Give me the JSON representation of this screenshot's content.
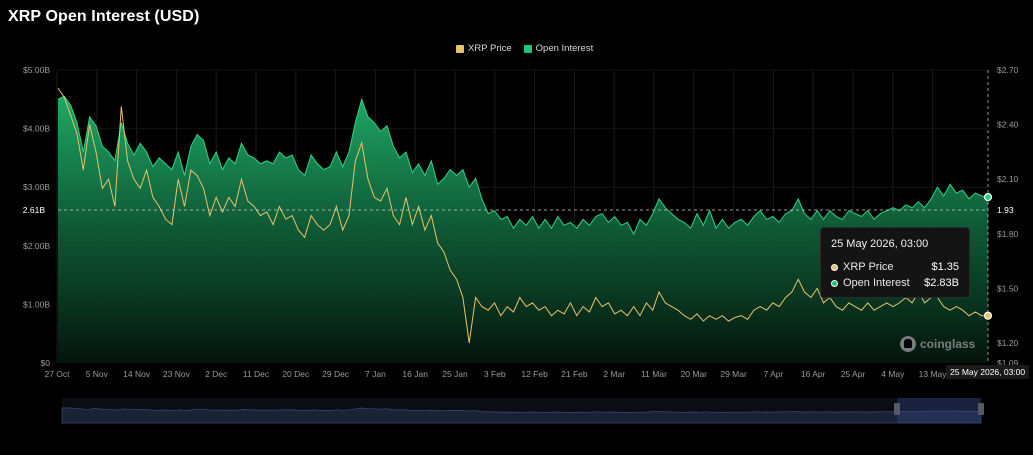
{
  "title": "XRP Open Interest (USD)",
  "legend": [
    {
      "label": "XRP Price",
      "color": "#e8c26a"
    },
    {
      "label": "Open Interest",
      "color": "#1fc37a"
    }
  ],
  "tooltip": {
    "date": "25 May 2026, 03:00",
    "rows": [
      {
        "label": "XRP Price",
        "value": "$1.35",
        "color": "#e8c26a"
      },
      {
        "label": "Open Interest",
        "value": "$2.83B",
        "color": "#1fc37a"
      }
    ]
  },
  "crosshair": {
    "left_label": "2.61B",
    "right_label": "1.93"
  },
  "latest_date_label": "25 May 2026, 03:00",
  "watermark": "coinglass",
  "chart_data": {
    "type": "area",
    "title": "XRP Open Interest (USD)",
    "x_tick_labels": [
      "27 Oct",
      "5 Nov",
      "14 Nov",
      "23 Nov",
      "2 Dec",
      "11 Dec",
      "20 Dec",
      "29 Dec",
      "7 Jan",
      "16 Jan",
      "25 Jan",
      "3 Feb",
      "12 Feb",
      "21 Feb",
      "2 Mar",
      "11 Mar",
      "20 Mar",
      "29 Mar",
      "7 Apr",
      "16 Apr",
      "25 Apr",
      "4 May",
      "13 May"
    ],
    "y_left": {
      "ticks": [
        "$0",
        "$1.00B",
        "$2.00B",
        "$3.00B",
        "$4.00B",
        "$5.00B"
      ],
      "range": [
        0,
        5.0
      ]
    },
    "y_right": {
      "ticks": [
        "$1.09",
        "$1.20",
        "$1.50",
        "$1.80",
        "$2.10",
        "$2.40",
        "$2.70"
      ],
      "range": [
        1.09,
        2.7
      ]
    },
    "legend_position": "top-center",
    "series": [
      {
        "name": "Open Interest",
        "axis": "left",
        "color": "#1fc37a",
        "points": [
          [
            0,
            4.5
          ],
          [
            1,
            4.55
          ],
          [
            2,
            4.4
          ],
          [
            3,
            4.1
          ],
          [
            4,
            3.6
          ],
          [
            5,
            4.2
          ],
          [
            6,
            4.05
          ],
          [
            7,
            3.7
          ],
          [
            8,
            3.6
          ],
          [
            9,
            3.45
          ],
          [
            10,
            4.1
          ],
          [
            11,
            3.75
          ],
          [
            12,
            3.55
          ],
          [
            13,
            3.75
          ],
          [
            14,
            3.6
          ],
          [
            15,
            3.35
          ],
          [
            16,
            3.5
          ],
          [
            17,
            3.4
          ],
          [
            18,
            3.3
          ],
          [
            19,
            3.6
          ],
          [
            20,
            3.2
          ],
          [
            21,
            3.7
          ],
          [
            22,
            3.9
          ],
          [
            23,
            3.8
          ],
          [
            24,
            3.4
          ],
          [
            25,
            3.6
          ],
          [
            26,
            3.3
          ],
          [
            27,
            3.5
          ],
          [
            28,
            3.4
          ],
          [
            29,
            3.75
          ],
          [
            30,
            3.55
          ],
          [
            31,
            3.5
          ],
          [
            32,
            3.4
          ],
          [
            33,
            3.45
          ],
          [
            34,
            3.4
          ],
          [
            35,
            3.6
          ],
          [
            36,
            3.5
          ],
          [
            37,
            3.55
          ],
          [
            38,
            3.3
          ],
          [
            39,
            3.2
          ],
          [
            40,
            3.55
          ],
          [
            41,
            3.4
          ],
          [
            42,
            3.3
          ],
          [
            43,
            3.35
          ],
          [
            44,
            3.6
          ],
          [
            45,
            3.35
          ],
          [
            46,
            3.6
          ],
          [
            47,
            4.1
          ],
          [
            48,
            4.5
          ],
          [
            49,
            4.2
          ],
          [
            50,
            4.1
          ],
          [
            51,
            3.95
          ],
          [
            52,
            4.05
          ],
          [
            53,
            3.7
          ],
          [
            54,
            3.5
          ],
          [
            55,
            3.6
          ],
          [
            56,
            3.25
          ],
          [
            57,
            3.4
          ],
          [
            58,
            3.2
          ],
          [
            59,
            3.45
          ],
          [
            60,
            3.05
          ],
          [
            61,
            3.15
          ],
          [
            62,
            3.3
          ],
          [
            63,
            3.2
          ],
          [
            64,
            3.3
          ],
          [
            65,
            3.0
          ],
          [
            66,
            3.15
          ],
          [
            67,
            2.8
          ],
          [
            68,
            2.55
          ],
          [
            69,
            2.6
          ],
          [
            70,
            2.45
          ],
          [
            71,
            2.5
          ],
          [
            72,
            2.3
          ],
          [
            73,
            2.45
          ],
          [
            74,
            2.35
          ],
          [
            75,
            2.5
          ],
          [
            76,
            2.3
          ],
          [
            77,
            2.45
          ],
          [
            78,
            2.3
          ],
          [
            79,
            2.5
          ],
          [
            80,
            2.35
          ],
          [
            81,
            2.4
          ],
          [
            82,
            2.3
          ],
          [
            83,
            2.45
          ],
          [
            84,
            2.35
          ],
          [
            85,
            2.5
          ],
          [
            86,
            2.55
          ],
          [
            87,
            2.4
          ],
          [
            88,
            2.5
          ],
          [
            89,
            2.35
          ],
          [
            90,
            2.4
          ],
          [
            91,
            2.2
          ],
          [
            92,
            2.45
          ],
          [
            93,
            2.35
          ],
          [
            94,
            2.55
          ],
          [
            95,
            2.8
          ],
          [
            96,
            2.65
          ],
          [
            97,
            2.55
          ],
          [
            98,
            2.45
          ],
          [
            99,
            2.4
          ],
          [
            100,
            2.3
          ],
          [
            101,
            2.55
          ],
          [
            102,
            2.35
          ],
          [
            103,
            2.6
          ],
          [
            104,
            2.3
          ],
          [
            105,
            2.45
          ],
          [
            106,
            2.3
          ],
          [
            107,
            2.4
          ],
          [
            108,
            2.45
          ],
          [
            109,
            2.35
          ],
          [
            110,
            2.5
          ],
          [
            111,
            2.6
          ],
          [
            112,
            2.45
          ],
          [
            113,
            2.5
          ],
          [
            114,
            2.4
          ],
          [
            115,
            2.55
          ],
          [
            116,
            2.6
          ],
          [
            117,
            2.8
          ],
          [
            118,
            2.55
          ],
          [
            119,
            2.45
          ],
          [
            120,
            2.6
          ],
          [
            121,
            2.45
          ],
          [
            122,
            2.6
          ],
          [
            123,
            2.5
          ],
          [
            124,
            2.45
          ],
          [
            125,
            2.6
          ],
          [
            126,
            2.55
          ],
          [
            127,
            2.5
          ],
          [
            128,
            2.6
          ],
          [
            129,
            2.45
          ],
          [
            130,
            2.55
          ],
          [
            131,
            2.6
          ],
          [
            132,
            2.65
          ],
          [
            133,
            2.6
          ],
          [
            134,
            2.7
          ],
          [
            135,
            2.65
          ],
          [
            136,
            2.75
          ],
          [
            137,
            2.65
          ],
          [
            138,
            2.8
          ],
          [
            139,
            3.0
          ],
          [
            140,
            2.85
          ],
          [
            141,
            3.05
          ],
          [
            142,
            2.9
          ],
          [
            143,
            2.95
          ],
          [
            144,
            2.8
          ],
          [
            145,
            2.9
          ],
          [
            146,
            2.85
          ],
          [
            147,
            2.83
          ]
        ]
      },
      {
        "name": "XRP Price",
        "axis": "right",
        "color": "#e8c26a",
        "points": [
          [
            0,
            2.6
          ],
          [
            1,
            2.55
          ],
          [
            2,
            2.45
          ],
          [
            3,
            2.35
          ],
          [
            4,
            2.15
          ],
          [
            5,
            2.4
          ],
          [
            6,
            2.25
          ],
          [
            7,
            2.05
          ],
          [
            8,
            2.1
          ],
          [
            9,
            1.95
          ],
          [
            10,
            2.5
          ],
          [
            11,
            2.2
          ],
          [
            12,
            2.1
          ],
          [
            13,
            2.05
          ],
          [
            14,
            2.15
          ],
          [
            15,
            2.0
          ],
          [
            16,
            1.95
          ],
          [
            17,
            1.88
          ],
          [
            18,
            1.85
          ],
          [
            19,
            2.1
          ],
          [
            20,
            1.95
          ],
          [
            21,
            2.15
          ],
          [
            22,
            2.12
          ],
          [
            23,
            2.05
          ],
          [
            24,
            1.9
          ],
          [
            25,
            2.0
          ],
          [
            26,
            1.92
          ],
          [
            27,
            2.0
          ],
          [
            28,
            1.95
          ],
          [
            29,
            2.1
          ],
          [
            30,
            1.98
          ],
          [
            31,
            1.95
          ],
          [
            32,
            1.9
          ],
          [
            33,
            1.92
          ],
          [
            34,
            1.85
          ],
          [
            35,
            1.95
          ],
          [
            36,
            1.88
          ],
          [
            37,
            1.9
          ],
          [
            38,
            1.82
          ],
          [
            39,
            1.78
          ],
          [
            40,
            1.9
          ],
          [
            41,
            1.85
          ],
          [
            42,
            1.82
          ],
          [
            43,
            1.85
          ],
          [
            44,
            1.95
          ],
          [
            45,
            1.82
          ],
          [
            46,
            1.9
          ],
          [
            47,
            2.2
          ],
          [
            48,
            2.3
          ],
          [
            49,
            2.1
          ],
          [
            50,
            2.0
          ],
          [
            51,
            1.98
          ],
          [
            52,
            2.05
          ],
          [
            53,
            1.9
          ],
          [
            54,
            1.85
          ],
          [
            55,
            2.0
          ],
          [
            56,
            1.85
          ],
          [
            57,
            1.95
          ],
          [
            58,
            1.82
          ],
          [
            59,
            1.9
          ],
          [
            60,
            1.75
          ],
          [
            61,
            1.7
          ],
          [
            62,
            1.6
          ],
          [
            63,
            1.55
          ],
          [
            64,
            1.45
          ],
          [
            65,
            1.2
          ],
          [
            66,
            1.45
          ],
          [
            67,
            1.4
          ],
          [
            68,
            1.38
          ],
          [
            69,
            1.42
          ],
          [
            70,
            1.35
          ],
          [
            71,
            1.4
          ],
          [
            72,
            1.37
          ],
          [
            73,
            1.45
          ],
          [
            74,
            1.4
          ],
          [
            75,
            1.42
          ],
          [
            76,
            1.38
          ],
          [
            77,
            1.4
          ],
          [
            78,
            1.35
          ],
          [
            79,
            1.38
          ],
          [
            80,
            1.36
          ],
          [
            81,
            1.42
          ],
          [
            82,
            1.35
          ],
          [
            83,
            1.4
          ],
          [
            84,
            1.37
          ],
          [
            85,
            1.45
          ],
          [
            86,
            1.4
          ],
          [
            87,
            1.42
          ],
          [
            88,
            1.36
          ],
          [
            89,
            1.38
          ],
          [
            90,
            1.35
          ],
          [
            91,
            1.4
          ],
          [
            92,
            1.35
          ],
          [
            93,
            1.42
          ],
          [
            94,
            1.38
          ],
          [
            95,
            1.48
          ],
          [
            96,
            1.42
          ],
          [
            97,
            1.4
          ],
          [
            98,
            1.38
          ],
          [
            99,
            1.35
          ],
          [
            100,
            1.33
          ],
          [
            101,
            1.36
          ],
          [
            102,
            1.32
          ],
          [
            103,
            1.35
          ],
          [
            104,
            1.33
          ],
          [
            105,
            1.35
          ],
          [
            106,
            1.32
          ],
          [
            107,
            1.34
          ],
          [
            108,
            1.35
          ],
          [
            109,
            1.33
          ],
          [
            110,
            1.38
          ],
          [
            111,
            1.4
          ],
          [
            112,
            1.38
          ],
          [
            113,
            1.42
          ],
          [
            114,
            1.4
          ],
          [
            115,
            1.45
          ],
          [
            116,
            1.48
          ],
          [
            117,
            1.55
          ],
          [
            118,
            1.48
          ],
          [
            119,
            1.45
          ],
          [
            120,
            1.5
          ],
          [
            121,
            1.42
          ],
          [
            122,
            1.45
          ],
          [
            123,
            1.4
          ],
          [
            124,
            1.38
          ],
          [
            125,
            1.42
          ],
          [
            126,
            1.4
          ],
          [
            127,
            1.38
          ],
          [
            128,
            1.42
          ],
          [
            129,
            1.38
          ],
          [
            130,
            1.4
          ],
          [
            131,
            1.42
          ],
          [
            132,
            1.4
          ],
          [
            133,
            1.42
          ],
          [
            134,
            1.45
          ],
          [
            135,
            1.42
          ],
          [
            136,
            1.48
          ],
          [
            137,
            1.42
          ],
          [
            138,
            1.45
          ],
          [
            139,
            1.45
          ],
          [
            140,
            1.4
          ],
          [
            141,
            1.38
          ],
          [
            142,
            1.4
          ],
          [
            143,
            1.38
          ],
          [
            144,
            1.35
          ],
          [
            145,
            1.37
          ],
          [
            146,
            1.35
          ],
          [
            147,
            1.35
          ]
        ]
      }
    ]
  }
}
